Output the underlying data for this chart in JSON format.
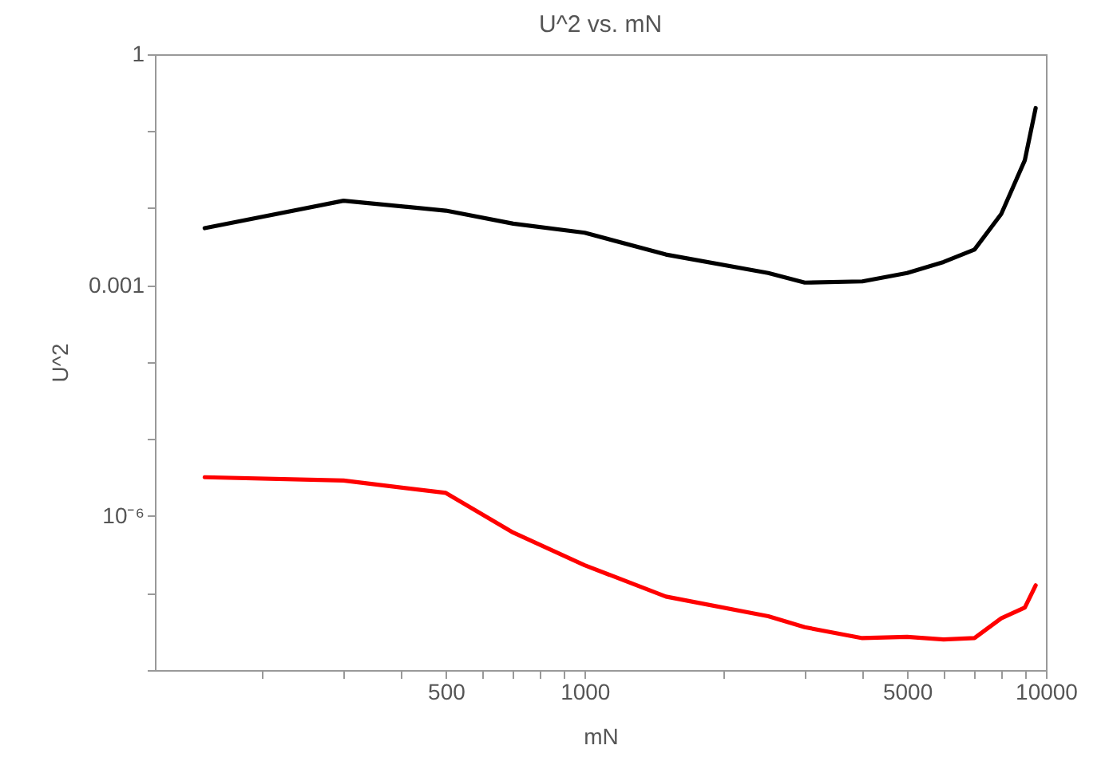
{
  "chart_data": {
    "type": "line",
    "title": "U^2 vs. mN",
    "xlabel": "mN",
    "ylabel": "U^2",
    "log": "xy",
    "grid": false,
    "legend": false,
    "marker": "none",
    "line_style": "solid",
    "x": [
      150,
      300,
      500,
      700,
      1000,
      1500,
      2500,
      3000,
      4000,
      5000,
      6000,
      7000,
      8000,
      9000,
      9500
    ],
    "series": [
      {
        "color": "#000000",
        "values": [
          0.0055,
          0.0125,
          0.0093,
          0.0063,
          0.0048,
          0.0025,
          0.00144,
          0.00108,
          0.00112,
          0.00144,
          0.002,
          0.0029,
          0.0084,
          0.042,
          0.2
        ]
      },
      {
        "color": "#ff0000",
        "values": [
          3.2e-06,
          2.9e-06,
          2e-06,
          6.1e-07,
          2.3e-07,
          9e-08,
          5e-08,
          3.6e-08,
          2.6e-08,
          2.7e-08,
          2.5e-08,
          2.6e-08,
          4.7e-08,
          6.5e-08,
          1.26e-07
        ]
      }
    ],
    "xlim": [
      117,
      10000
    ],
    "xticks": [
      {
        "value": 200,
        "label": null
      },
      {
        "value": 300,
        "label": null
      },
      {
        "value": 400,
        "label": null
      },
      500,
      {
        "value": 600,
        "label": null
      },
      {
        "value": 700,
        "label": null
      },
      {
        "value": 800,
        "label": null
      },
      {
        "value": 900,
        "label": null
      },
      1000,
      {
        "value": 2000,
        "label": null
      },
      {
        "value": 3000,
        "label": null
      },
      {
        "value": 4000,
        "label": null
      },
      5000,
      {
        "value": 6000,
        "label": null
      },
      {
        "value": 7000,
        "label": null
      },
      {
        "value": 8000,
        "label": null
      },
      {
        "value": 9000,
        "label": null
      },
      10000
    ],
    "ylim": [
      1e-08,
      1
    ],
    "yticks": [
      {
        "value": 1e-08,
        "label": null
      },
      {
        "value": 1e-07,
        "label": null
      },
      {
        "value": 1e-06,
        "label": "10⁻⁶"
      },
      {
        "value": 1e-05,
        "label": null
      },
      {
        "value": 0.0001,
        "label": null
      },
      {
        "value": 0.001,
        "label": "0.001"
      },
      {
        "value": 0.01,
        "label": null
      },
      {
        "value": 0.1,
        "label": null
      },
      1
    ]
  }
}
